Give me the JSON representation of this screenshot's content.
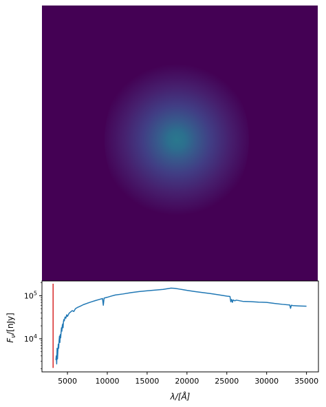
{
  "chart_data": [
    {
      "type": "heatmap",
      "title": "",
      "colormap": "viridis",
      "background_color": "#440154",
      "peak_color": "#2a788e",
      "blob": {
        "center": [
          0.49,
          0.49
        ],
        "description_level": "single diffuse source, peak value about 0.4 of colormap range"
      }
    },
    {
      "type": "line",
      "title": "",
      "xlabel": "λ/[Å]",
      "ylabel": "F_ν/[nJy]",
      "ylabel_parts": {
        "main": "F",
        "sub": "ν",
        "unit": "/[nJy]"
      },
      "xlim": [
        1800,
        36500
      ],
      "ylim": [
        1700,
        220000
      ],
      "yscale": "log",
      "grid": false,
      "xticks": [
        5000,
        10000,
        15000,
        20000,
        25000,
        30000,
        35000
      ],
      "xtick_labels": [
        "5000",
        "10000",
        "15000",
        "20000",
        "25000",
        "30000",
        "35000"
      ],
      "yticks": [
        10000,
        100000
      ],
      "ytick_labels": [
        {
          "base": "10",
          "exp": "4"
        },
        {
          "base": "10",
          "exp": "5"
        }
      ],
      "series": [
        {
          "color": "#1f77b4",
          "x": [
            3550,
            3600,
            3650,
            3700,
            3750,
            3800,
            3850,
            3900,
            3950,
            4000,
            4050,
            4100,
            4150,
            4200,
            4250,
            4300,
            4350,
            4400,
            4450,
            4500,
            4550,
            4600,
            4700,
            4800,
            4900,
            5000,
            5200,
            5400,
            5600,
            5800,
            6000,
            6300,
            6600,
            7000,
            7500,
            8000,
            8500,
            9000,
            9400,
            9500,
            9600,
            10000,
            10500,
            11000,
            12000,
            13000,
            14000,
            15000,
            16000,
            17000,
            18000,
            18500,
            19000,
            19500,
            20000,
            21000,
            22000,
            23000,
            24000,
            25000,
            25400,
            25500,
            25600,
            25700,
            25800,
            26000,
            26200,
            27000,
            28000,
            29000,
            30000,
            31000,
            32000,
            32900,
            33000,
            33100,
            33300,
            34000,
            35000
          ],
          "y": [
            3200,
            4000,
            2600,
            6000,
            3400,
            5200,
            7500,
            6000,
            9000,
            11500,
            8200,
            12500,
            10500,
            14000,
            18000,
            15000,
            20000,
            22000,
            18000,
            25000,
            28000,
            26000,
            32000,
            30000,
            36000,
            33000,
            39000,
            42000,
            45000,
            43000,
            50000,
            54000,
            57000,
            62000,
            67000,
            72000,
            77000,
            82000,
            86000,
            60000,
            88000,
            92000,
            98000,
            104000,
            110000,
            118000,
            125000,
            130000,
            135000,
            140000,
            150000,
            148000,
            143000,
            138000,
            133000,
            125000,
            118000,
            112000,
            105000,
            98000,
            96000,
            72000,
            82000,
            70000,
            80000,
            76000,
            79000,
            74000,
            73000,
            71000,
            70000,
            66000,
            63000,
            61000,
            51000,
            60000,
            59000,
            58000,
            57000
          ]
        }
      ],
      "annotations": [
        {
          "type": "vline",
          "color": "#d62728",
          "x": 3200,
          "y_range": [
            2100,
            190000
          ]
        }
      ]
    }
  ]
}
